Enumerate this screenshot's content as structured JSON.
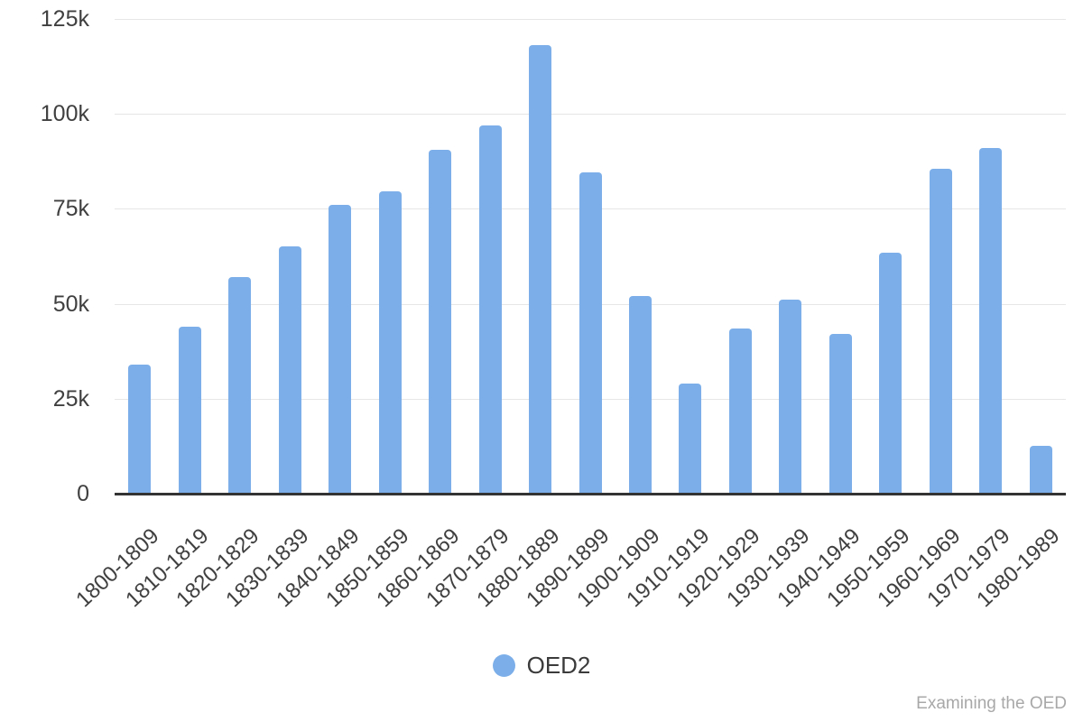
{
  "chart_data": {
    "type": "bar",
    "title": "",
    "xlabel": "",
    "ylabel": "",
    "categories": [
      "1800-1809",
      "1810-1819",
      "1820-1829",
      "1830-1839",
      "1840-1849",
      "1850-1859",
      "1860-1869",
      "1870-1879",
      "1880-1889",
      "1890-1899",
      "1900-1909",
      "1910-1919",
      "1920-1929",
      "1930-1939",
      "1940-1949",
      "1950-1959",
      "1960-1969",
      "1970-1979",
      "1980-1989"
    ],
    "series": [
      {
        "name": "OED2",
        "values": [
          34000,
          44000,
          57000,
          65000,
          76000,
          79500,
          90500,
          97000,
          118000,
          84500,
          52000,
          29000,
          43500,
          51000,
          42000,
          63500,
          85500,
          91000,
          12500
        ]
      }
    ],
    "ylim": [
      0,
      125000
    ],
    "y_ticks": [
      {
        "value": 0,
        "label": "0"
      },
      {
        "value": 25000,
        "label": "25k"
      },
      {
        "value": 50000,
        "label": "50k"
      },
      {
        "value": 75000,
        "label": "75k"
      },
      {
        "value": 100000,
        "label": "100k"
      },
      {
        "value": 125000,
        "label": "125k"
      }
    ],
    "grid": true,
    "legend_position": "bottom"
  },
  "legend": {
    "label": "OED2"
  },
  "watermark": "Examining the OED",
  "colors": {
    "bar": "#7cafe9",
    "axis_text": "#404040",
    "gridline": "#e6e6e6",
    "baseline": "#333333",
    "watermark_text": "#a8a8a8"
  }
}
